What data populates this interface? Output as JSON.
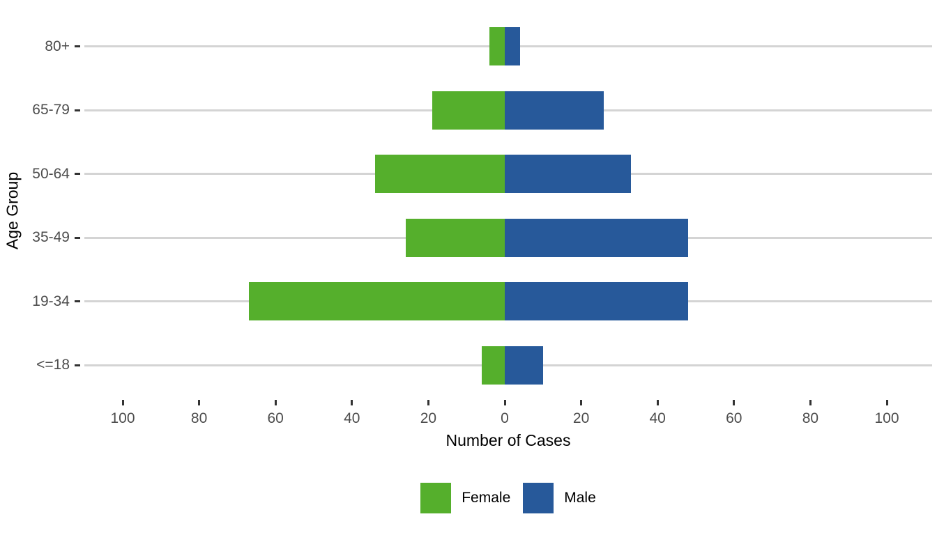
{
  "chart_data": {
    "type": "bar",
    "variant": "diverging-horizontal-pyramid",
    "title": "",
    "xlabel": "Number of Cases",
    "ylabel": "Age Group",
    "categories": [
      "80+",
      "65-79",
      "50-64",
      "35-49",
      "19-34",
      "<=18"
    ],
    "series": [
      {
        "name": "Female",
        "color": "#55AF2C",
        "side": "left",
        "values": [
          4,
          19,
          34,
          26,
          67,
          6
        ]
      },
      {
        "name": "Male",
        "color": "#27599A",
        "side": "right",
        "values": [
          4,
          26,
          33,
          48,
          48,
          10
        ]
      }
    ],
    "x_ticks": [
      -100,
      -80,
      -60,
      -40,
      -20,
      0,
      20,
      40,
      60,
      80,
      100
    ],
    "x_tick_labels": [
      "100",
      "80",
      "60",
      "40",
      "20",
      "0",
      "20",
      "40",
      "60",
      "80",
      "100"
    ],
    "xlim": [
      -110,
      112
    ],
    "grid": "horizontal-major-only",
    "legend_position": "bottom-center",
    "background": "#ffffff"
  },
  "colors": {
    "gridline": "#d4d4d4",
    "tick": "#333333",
    "axis_text": "#4d4d4d",
    "axis_title": "#000000",
    "legend_text": "#000000"
  }
}
